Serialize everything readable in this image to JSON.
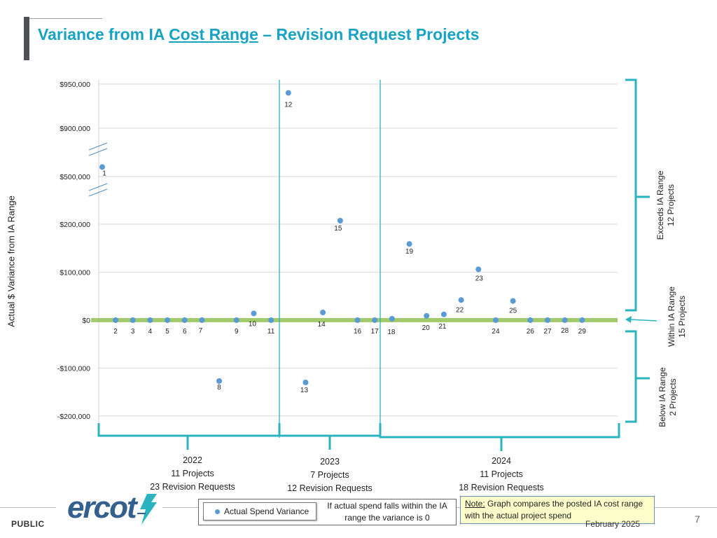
{
  "title": {
    "prefix": "Variance from IA ",
    "underlined": "Cost Range",
    "suffix": " – Revision Request Projects"
  },
  "chart_data": {
    "type": "scatter",
    "ylabel": "Actual $ Variance from IA Range",
    "y_ticks": [
      {
        "label": "$950,000",
        "value": 950000
      },
      {
        "label": "$900,000",
        "value": 900000
      },
      {
        "label": "$500,000",
        "value": 500000
      },
      {
        "label": "$200,000",
        "value": 200000
      },
      {
        "label": "$100,000",
        "value": 100000
      },
      {
        "label": "$0",
        "value": 0
      },
      {
        "label": "-$100,000",
        "value": -100000
      },
      {
        "label": "-$200,000",
        "value": -200000
      }
    ],
    "axis_break": "between $500,000 and $900,000 (broken axis)",
    "grid": true,
    "series_color": "#5b9bd5",
    "band_color": "#92c353",
    "points": [
      {
        "label": "1",
        "x": 1,
        "y": 520000
      },
      {
        "label": "2",
        "x": 2,
        "y": 0
      },
      {
        "label": "3",
        "x": 3,
        "y": 0
      },
      {
        "label": "4",
        "x": 4,
        "y": 0
      },
      {
        "label": "5",
        "x": 5,
        "y": 0
      },
      {
        "label": "6",
        "x": 6,
        "y": 0
      },
      {
        "label": "7",
        "x": 7,
        "y": 0
      },
      {
        "label": "8",
        "x": 8,
        "y": -127000
      },
      {
        "label": "9",
        "x": 9,
        "y": 0
      },
      {
        "label": "10",
        "x": 10,
        "y": 14000
      },
      {
        "label": "11",
        "x": 11,
        "y": 0
      },
      {
        "label": "12",
        "x": 12,
        "y": 940000
      },
      {
        "label": "13",
        "x": 13,
        "y": -130000
      },
      {
        "label": "14",
        "x": 14,
        "y": 16000
      },
      {
        "label": "15",
        "x": 15,
        "y": 222000
      },
      {
        "label": "16",
        "x": 16,
        "y": 0
      },
      {
        "label": "17",
        "x": 17,
        "y": 0
      },
      {
        "label": "18",
        "x": 18,
        "y": 3000
      },
      {
        "label": "19",
        "x": 19,
        "y": 159000
      },
      {
        "label": "20",
        "x": 20,
        "y": 9000
      },
      {
        "label": "21",
        "x": 21,
        "y": 12000
      },
      {
        "label": "22",
        "x": 22,
        "y": 42000
      },
      {
        "label": "23",
        "x": 23,
        "y": 106000
      },
      {
        "label": "24",
        "x": 24,
        "y": 0
      },
      {
        "label": "25",
        "x": 25,
        "y": 40000
      },
      {
        "label": "26",
        "x": 26,
        "y": 0
      },
      {
        "label": "27",
        "x": 27,
        "y": 0
      },
      {
        "label": "28",
        "x": 28,
        "y": 0
      },
      {
        "label": "29",
        "x": 29,
        "y": 0
      }
    ],
    "year_groups": [
      {
        "year": "2022",
        "projects": "11 Projects",
        "requests": "23 Revision Requests",
        "first": 1,
        "last": 11
      },
      {
        "year": "2023",
        "projects": "7 Projects",
        "requests": "12 Revision Requests",
        "first": 12,
        "last": 18
      },
      {
        "year": "2024",
        "projects": "11 Projects",
        "requests": "18 Revision Requests",
        "first": 19,
        "last": 29
      }
    ],
    "ranges": [
      {
        "line1": "Exceeds IA Range",
        "line2": "12 Projects"
      },
      {
        "line1": "Within IA Range",
        "line2": "15 Projects"
      },
      {
        "line1": "Below IA Range",
        "line2": "2 Projects"
      }
    ],
    "legend": "Actual Spend Variance",
    "legend_note": "If actual spend falls within the IA range the variance is 0"
  },
  "note": {
    "lead": "Note:",
    "text": " Graph compares the posted IA cost range with the actual project spend"
  },
  "footer": {
    "public": "PUBLIC",
    "logo": "ercot",
    "date": "February 2025",
    "page": "7"
  }
}
